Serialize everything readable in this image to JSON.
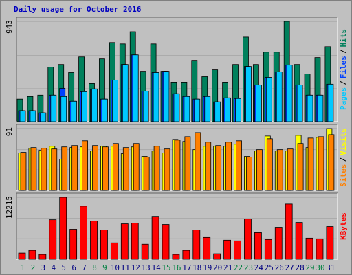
{
  "chart_data": [
    {
      "type": "bar",
      "title": "Daily usage for October 2016",
      "legend_separator": "/",
      "ylim": [
        0,
        943
      ],
      "yticks": [
        943
      ],
      "series": [
        {
          "name": "Hits",
          "color": "#00805c",
          "values": [
            212,
            237,
            250,
            513,
            538,
            462,
            609,
            359,
            590,
            744,
            731,
            846,
            474,
            731,
            474,
            372,
            372,
            577,
            423,
            487,
            372,
            538,
            795,
            538,
            654,
            654,
            943,
            538,
            449,
            603,
            705
          ]
        },
        {
          "name": "Files",
          "color": "#0040ff",
          "values": [
            103,
            103,
            83,
            250,
            314,
            192,
            282,
            308,
            212,
            391,
            538,
            628,
            288,
            462,
            474,
            263,
            237,
            212,
            237,
            186,
            224,
            218,
            519,
            346,
            417,
            468,
            532,
            346,
            250,
            250,
            353
          ]
        },
        {
          "name": "Pages",
          "color": "#00c8ff",
          "values": [
            103,
            103,
            83,
            250,
            237,
            192,
            282,
            308,
            212,
            391,
            538,
            628,
            288,
            462,
            474,
            263,
            237,
            212,
            237,
            186,
            224,
            218,
            519,
            346,
            417,
            468,
            532,
            346,
            250,
            250,
            353
          ]
        }
      ]
    },
    {
      "type": "bar",
      "legend_separator": "/",
      "ylim": [
        0,
        91
      ],
      "yticks": [
        91
      ],
      "series": [
        {
          "name": "Visits",
          "color": "#ffff00",
          "values": [
            55,
            62,
            59,
            65,
            46,
            63,
            64,
            58,
            65,
            65,
            54,
            64,
            50,
            58,
            55,
            75,
            72,
            60,
            65,
            65,
            65,
            68,
            50,
            58,
            80,
            58,
            58,
            81,
            63,
            78,
            91
          ]
        },
        {
          "name": "Sites",
          "color": "#ff8000",
          "values": [
            56,
            63,
            62,
            61,
            64,
            66,
            73,
            66,
            64,
            69,
            63,
            69,
            49,
            65,
            61,
            74,
            79,
            85,
            71,
            66,
            71,
            73,
            49,
            60,
            76,
            60,
            61,
            69,
            77,
            79,
            82
          ]
        }
      ]
    },
    {
      "type": "bar",
      "ylim": [
        0,
        12215
      ],
      "yticks": [
        12215
      ],
      "categories": [
        "1",
        "2",
        "3",
        "4",
        "5",
        "6",
        "7",
        "8",
        "9",
        "10",
        "11",
        "12",
        "13",
        "14",
        "15",
        "16",
        "17",
        "18",
        "19",
        "20",
        "21",
        "22",
        "23",
        "24",
        "25",
        "26",
        "27",
        "28",
        "29",
        "30",
        "31"
      ],
      "category_colors": [
        "#008040",
        "#008040",
        "#000080",
        "#000080",
        "#000080",
        "#000080",
        "#000080",
        "#008040",
        "#008040",
        "#000080",
        "#000080",
        "#000080",
        "#000080",
        "#000080",
        "#008040",
        "#008040",
        "#000080",
        "#000080",
        "#000080",
        "#000080",
        "#000080",
        "#008040",
        "#008040",
        "#000080",
        "#000080",
        "#000080",
        "#000080",
        "#000080",
        "#008040",
        "#008040",
        "#000080"
      ],
      "series": [
        {
          "name": "KBytes",
          "color": "#ff0000",
          "values": [
            1208,
            1745,
            940,
            7785,
            12215,
            5906,
            10470,
            7517,
            5772,
            3221,
            6980,
            7114,
            2953,
            8457,
            6846,
            940,
            1745,
            5772,
            4295,
            1074,
            3758,
            3624,
            7920,
            5235,
            3893,
            6309,
            10873,
            7249,
            4161,
            4027,
            6443
          ]
        }
      ]
    }
  ]
}
